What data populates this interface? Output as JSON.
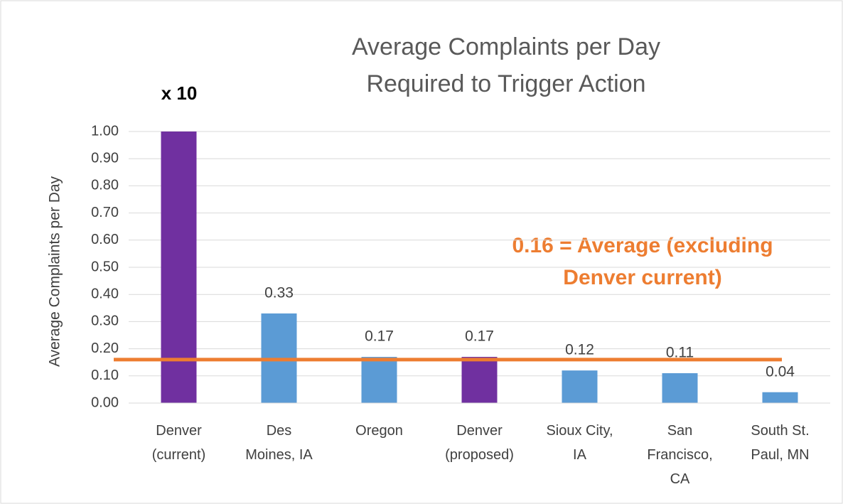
{
  "chart_data": {
    "type": "bar",
    "title": [
      "Average Complaints per Day",
      "Required to Trigger Action"
    ],
    "y_label": "Average Complaints per Day",
    "categories": [
      "Denver\n(current)",
      "Des\nMoines, IA",
      "Oregon",
      "Denver\n(proposed)",
      "Sioux City,\nIA",
      "San\nFrancisco,\nCA",
      "South St.\nPaul, MN"
    ],
    "values": [
      1.0,
      0.33,
      0.17,
      0.17,
      0.12,
      0.11,
      0.04
    ],
    "value_labels": [
      null,
      "0.33",
      "0.17",
      "0.17",
      "0.12",
      "0.11",
      "0.04"
    ],
    "colors": [
      "#7030a0",
      "#5b9bd5",
      "#5b9bd5",
      "#7030a0",
      "#5b9bd5",
      "#5b9bd5",
      "#5b9bd5"
    ],
    "ylim": [
      0,
      1
    ],
    "yticks": [
      {
        "value": 0,
        "label": "0.00"
      },
      {
        "value": 0.1,
        "label": "0.10"
      },
      {
        "value": 0.2,
        "label": "0.20"
      },
      {
        "value": 0.3,
        "label": "0.30"
      },
      {
        "value": 0.4,
        "label": "0.40"
      },
      {
        "value": 0.5,
        "label": "0.50"
      },
      {
        "value": 0.6,
        "label": "0.60"
      },
      {
        "value": 0.7,
        "label": "0.70"
      },
      {
        "value": 0.8,
        "label": "0.80"
      },
      {
        "value": 0.9,
        "label": "0.90"
      },
      {
        "value": 1,
        "label": "1.00"
      }
    ],
    "grid": true,
    "reference_line": {
      "value": 0.16,
      "color": "#ed7d31"
    },
    "annotations": [
      "x 10",
      "0.16 = Average (excluding",
      "Denver current)"
    ]
  }
}
